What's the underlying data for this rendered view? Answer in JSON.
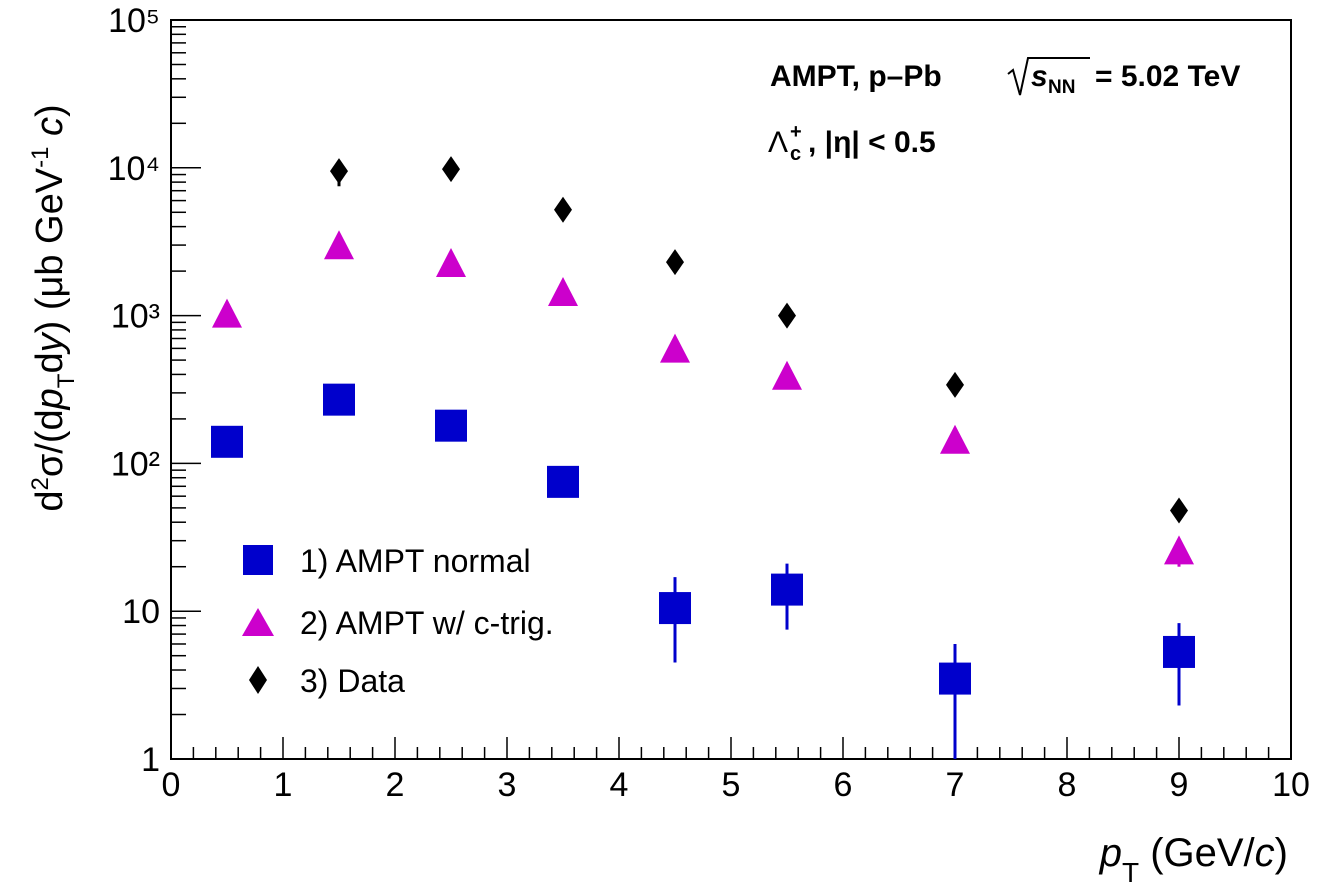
{
  "chart_data": {
    "type": "scatter",
    "title": "",
    "xlabel": "p_T (GeV/c)",
    "ylabel": "d²σ/(dp_T dy) (μb GeV⁻¹ c)",
    "xlim": [
      0,
      10
    ],
    "ylim": [
      1,
      100000
    ],
    "y_scale": "log",
    "grid": false,
    "legend_position": "bottom-left",
    "x_ticks": [
      "0",
      "1",
      "2",
      "3",
      "4",
      "5",
      "6",
      "7",
      "8",
      "9",
      "10"
    ],
    "y_ticks": [
      "1",
      "10",
      "10²",
      "10³",
      "10⁴",
      "10⁵"
    ],
    "annotations": {
      "line1_left": "AMPT, p–Pb",
      "line1_right": "= 5.02 TeV",
      "sqrt_var": "s",
      "sqrt_sub": "NN",
      "line2_lambda": "Λ",
      "line2_sub": "c",
      "line2_sup": "+",
      "line2_rest": ", |η| < 0.5"
    },
    "series": [
      {
        "name": "1) AMPT normal",
        "marker": "square",
        "color": "#0000cc",
        "points": [
          {
            "x": 0.5,
            "y": 140
          },
          {
            "x": 1.5,
            "y": 270
          },
          {
            "x": 2.5,
            "y": 180
          },
          {
            "x": 3.5,
            "y": 75,
            "lo": 60,
            "hi": 85
          },
          {
            "x": 4.5,
            "y": 10.5,
            "lo": 4.5,
            "hi": 17
          },
          {
            "x": 5.5,
            "y": 14,
            "lo": 7.5,
            "hi": 21
          },
          {
            "x": 7,
            "y": 3.5,
            "lo": 1,
            "hi": 6
          },
          {
            "x": 9,
            "y": 5.3,
            "lo": 2.3,
            "hi": 8.3
          }
        ]
      },
      {
        "name": "2) AMPT w/ c-trig.",
        "marker": "triangle",
        "color": "#cc00cc",
        "points": [
          {
            "x": 0.5,
            "y": 1000
          },
          {
            "x": 1.5,
            "y": 2900
          },
          {
            "x": 2.5,
            "y": 2200
          },
          {
            "x": 3.5,
            "y": 1400
          },
          {
            "x": 4.5,
            "y": 580
          },
          {
            "x": 5.5,
            "y": 380
          },
          {
            "x": 7,
            "y": 140
          },
          {
            "x": 9,
            "y": 25,
            "lo": 20,
            "hi": 28
          }
        ]
      },
      {
        "name": "3) Data",
        "marker": "diamond",
        "color": "#000000",
        "points": [
          {
            "x": 1.5,
            "y": 9500,
            "lo": 7500,
            "hi": 11000
          },
          {
            "x": 2.5,
            "y": 9800
          },
          {
            "x": 3.5,
            "y": 5200
          },
          {
            "x": 4.5,
            "y": 2300
          },
          {
            "x": 5.5,
            "y": 1000
          },
          {
            "x": 7,
            "y": 340
          },
          {
            "x": 9,
            "y": 48
          }
        ]
      }
    ]
  }
}
